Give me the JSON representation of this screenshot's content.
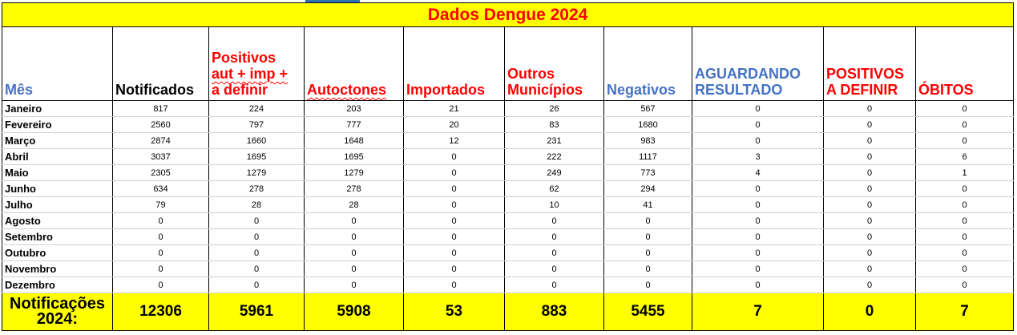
{
  "title": "Dados Dengue 2024",
  "headers": {
    "mes": "Mês",
    "notificados": "Notificados",
    "positivos_l1": "Positivos",
    "positivos_l2": "aut + imp +",
    "positivos_l3": "a definir",
    "autoctones": "Autoctones",
    "importados": "Importados",
    "outros_l1": "Outros",
    "outros_l2": "Municípios",
    "negativos": "Negativos",
    "aguardando_l1": "AGUARDANDO",
    "aguardando_l2": "RESULTADO",
    "pos_definir_l1": "POSITIVOS",
    "pos_definir_l2": "A DEFINIR",
    "obitos": "ÓBITOS"
  },
  "rows": [
    {
      "mes": "Janeiro",
      "notificados": "817",
      "positivos": "224",
      "autoctones": "203",
      "importados": "21",
      "outros": "26",
      "negativos": "567",
      "aguardando": "0",
      "pos_definir": "0",
      "obitos": "0"
    },
    {
      "mes": "Fevereiro",
      "notificados": "2560",
      "positivos": "797",
      "autoctones": "777",
      "importados": "20",
      "outros": "83",
      "negativos": "1680",
      "aguardando": "0",
      "pos_definir": "0",
      "obitos": "0"
    },
    {
      "mes": "Março",
      "notificados": "2874",
      "positivos": "1660",
      "autoctones": "1648",
      "importados": "12",
      "outros": "231",
      "negativos": "983",
      "aguardando": "0",
      "pos_definir": "0",
      "obitos": "0"
    },
    {
      "mes": "Abril",
      "notificados": "3037",
      "positivos": "1695",
      "autoctones": "1695",
      "importados": "0",
      "outros": "222",
      "negativos": "1117",
      "aguardando": "3",
      "pos_definir": "0",
      "obitos": "6"
    },
    {
      "mes": "Maio",
      "notificados": "2305",
      "positivos": "1279",
      "autoctones": "1279",
      "importados": "0",
      "outros": "249",
      "negativos": "773",
      "aguardando": "4",
      "pos_definir": "0",
      "obitos": "1"
    },
    {
      "mes": "Junho",
      "notificados": "634",
      "positivos": "278",
      "autoctones": "278",
      "importados": "0",
      "outros": "62",
      "negativos": "294",
      "aguardando": "0",
      "pos_definir": "0",
      "obitos": "0"
    },
    {
      "mes": "Julho",
      "notificados": "79",
      "positivos": "28",
      "autoctones": "28",
      "importados": "0",
      "outros": "10",
      "negativos": "41",
      "aguardando": "0",
      "pos_definir": "0",
      "obitos": "0"
    },
    {
      "mes": "Agosto",
      "notificados": "0",
      "positivos": "0",
      "autoctones": "0",
      "importados": "0",
      "outros": "0",
      "negativos": "0",
      "aguardando": "0",
      "pos_definir": "0",
      "obitos": "0"
    },
    {
      "mes": "Setembro",
      "notificados": "0",
      "positivos": "0",
      "autoctones": "0",
      "importados": "0",
      "outros": "0",
      "negativos": "0",
      "aguardando": "0",
      "pos_definir": "0",
      "obitos": "0"
    },
    {
      "mes": "Outubro",
      "notificados": "0",
      "positivos": "0",
      "autoctones": "0",
      "importados": "0",
      "outros": "0",
      "negativos": "0",
      "aguardando": "0",
      "pos_definir": "0",
      "obitos": "0"
    },
    {
      "mes": "Novembro",
      "notificados": "0",
      "positivos": "0",
      "autoctones": "0",
      "importados": "0",
      "outros": "0",
      "negativos": "0",
      "aguardando": "0",
      "pos_definir": "0",
      "obitos": "0"
    },
    {
      "mes": "Dezembro",
      "notificados": "0",
      "positivos": "0",
      "autoctones": "0",
      "importados": "0",
      "outros": "0",
      "negativos": "0",
      "aguardando": "0",
      "pos_definir": "0",
      "obitos": "0"
    }
  ],
  "totals": {
    "label_l1": "Notificações",
    "label_l2": "2024:",
    "notificados": "12306",
    "positivos": "5961",
    "autoctones": "5908",
    "importados": "53",
    "outros": "883",
    "negativos": "5455",
    "aguardando": "7",
    "pos_definir": "0",
    "obitos": "7"
  },
  "colors": {
    "highlight": "#ffff00",
    "red_text": "#ff0000",
    "blue_text": "#4472c4",
    "accent_bar": "#2e75b6"
  }
}
